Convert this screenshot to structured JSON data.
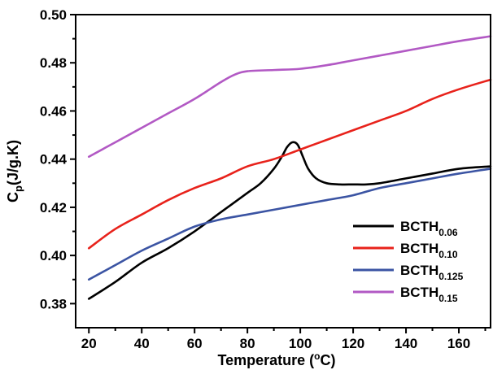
{
  "chart_data": {
    "type": "line",
    "xlabel": "Temperature (°C)",
    "xlabel_parts": {
      "main": "Temperature (",
      "sup": "o",
      "tail": "C)"
    },
    "ylabel": "Cp(J/g.K)",
    "ylabel_parts": {
      "main": "C",
      "sub": "p",
      "tail": "(J/g.K)"
    },
    "xlim": [
      15,
      172
    ],
    "ylim": [
      0.37,
      0.5
    ],
    "x_ticks": [
      20,
      40,
      60,
      80,
      100,
      120,
      140,
      160
    ],
    "y_ticks": [
      0.38,
      0.4,
      0.42,
      0.44,
      0.46,
      0.48,
      0.5
    ],
    "y_tick_labels": [
      "0.38",
      "0.40",
      "0.42",
      "0.44",
      "0.46",
      "0.48",
      "0.50"
    ],
    "grid": false,
    "legend_position": "bottom-right",
    "series": [
      {
        "name": "BCTH0.06",
        "label_main": "BCTH",
        "label_sub": "0.06",
        "color": "#000000",
        "points": [
          [
            20,
            0.382
          ],
          [
            30,
            0.389
          ],
          [
            40,
            0.397
          ],
          [
            50,
            0.403
          ],
          [
            60,
            0.41
          ],
          [
            70,
            0.418
          ],
          [
            80,
            0.426
          ],
          [
            85,
            0.43
          ],
          [
            90,
            0.436
          ],
          [
            93,
            0.441
          ],
          [
            95,
            0.445
          ],
          [
            97,
            0.447
          ],
          [
            99,
            0.446
          ],
          [
            101,
            0.441
          ],
          [
            103,
            0.436
          ],
          [
            106,
            0.432
          ],
          [
            110,
            0.43
          ],
          [
            115,
            0.4295
          ],
          [
            120,
            0.4295
          ],
          [
            125,
            0.4295
          ],
          [
            130,
            0.43
          ],
          [
            140,
            0.432
          ],
          [
            150,
            0.434
          ],
          [
            160,
            0.436
          ],
          [
            172,
            0.437
          ]
        ]
      },
      {
        "name": "BCTH0.10",
        "label_main": "BCTH",
        "label_sub": "0.10",
        "color": "#e8221b",
        "points": [
          [
            20,
            0.403
          ],
          [
            30,
            0.411
          ],
          [
            40,
            0.417
          ],
          [
            50,
            0.423
          ],
          [
            60,
            0.428
          ],
          [
            70,
            0.432
          ],
          [
            80,
            0.437
          ],
          [
            90,
            0.44
          ],
          [
            100,
            0.444
          ],
          [
            110,
            0.448
          ],
          [
            120,
            0.452
          ],
          [
            130,
            0.456
          ],
          [
            140,
            0.46
          ],
          [
            150,
            0.465
          ],
          [
            160,
            0.469
          ],
          [
            172,
            0.473
          ]
        ]
      },
      {
        "name": "BCTH0.125",
        "label_main": "BCTH",
        "label_sub": "0.125",
        "color": "#3b54a3",
        "points": [
          [
            20,
            0.39
          ],
          [
            30,
            0.396
          ],
          [
            40,
            0.402
          ],
          [
            50,
            0.407
          ],
          [
            60,
            0.412
          ],
          [
            70,
            0.415
          ],
          [
            80,
            0.417
          ],
          [
            90,
            0.419
          ],
          [
            100,
            0.421
          ],
          [
            110,
            0.423
          ],
          [
            120,
            0.425
          ],
          [
            130,
            0.428
          ],
          [
            140,
            0.43
          ],
          [
            150,
            0.432
          ],
          [
            160,
            0.434
          ],
          [
            172,
            0.436
          ]
        ]
      },
      {
        "name": "BCTH0.15",
        "label_main": "BCTH",
        "label_sub": "0.15",
        "color": "#b259c4",
        "points": [
          [
            20,
            0.441
          ],
          [
            30,
            0.447
          ],
          [
            40,
            0.453
          ],
          [
            50,
            0.459
          ],
          [
            60,
            0.465
          ],
          [
            70,
            0.472
          ],
          [
            75,
            0.475
          ],
          [
            80,
            0.4765
          ],
          [
            90,
            0.477
          ],
          [
            100,
            0.4775
          ],
          [
            110,
            0.479
          ],
          [
            120,
            0.481
          ],
          [
            130,
            0.483
          ],
          [
            140,
            0.485
          ],
          [
            150,
            0.487
          ],
          [
            160,
            0.489
          ],
          [
            172,
            0.491
          ]
        ]
      }
    ]
  }
}
